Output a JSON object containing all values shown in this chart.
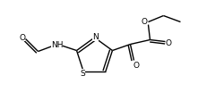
{
  "bg_color": "#ffffff",
  "line_color": "#000000",
  "lw": 1.0,
  "fs": 6.5,
  "figsize": [
    2.21,
    1.14
  ],
  "dpi": 100,
  "xlim": [
    0.0,
    2.21
  ],
  "ylim": [
    0.0,
    1.14
  ]
}
